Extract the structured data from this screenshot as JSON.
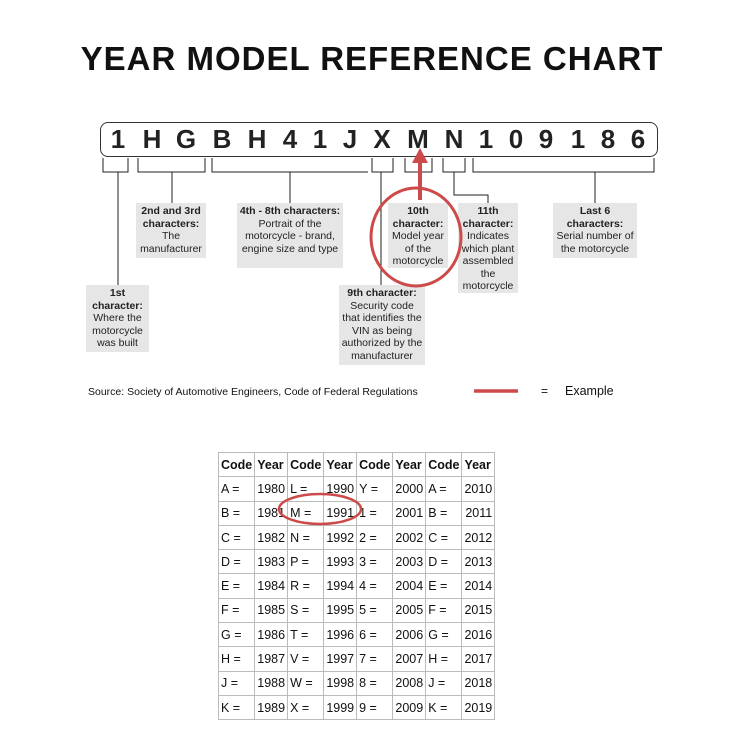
{
  "title": "YEAR MODEL REFERENCE CHART",
  "vin": [
    "1",
    "H",
    "G",
    "B",
    "H",
    "4",
    "1",
    "J",
    "X",
    "M",
    "N",
    "1",
    "0",
    "9",
    "1",
    "8",
    "6"
  ],
  "labels": {
    "c1": {
      "head": "1st character:",
      "body": "Where the motorcycle was built"
    },
    "c23": {
      "head": "2nd and 3rd characters:",
      "body": "The manufacturer"
    },
    "c48": {
      "head": "4th - 8th characters:",
      "body": "Portrait of the motorcycle - brand, engine size and type"
    },
    "c9": {
      "head": "9th character:",
      "body": "Security code that identifies the VIN as being authorized by the manufacturer"
    },
    "c10": {
      "head": "10th character:",
      "body": "Model year of the motorcycle"
    },
    "c11": {
      "head": "11th character:",
      "body": "Indicates which plant assembled the motorcycle"
    },
    "last6": {
      "head": "Last 6 characters:",
      "body": "Serial number of the motorcycle"
    }
  },
  "source": "Source:  Society of Automotive Engineers, Code of Federal Regulations",
  "legend": {
    "equals": "=",
    "label": "Example",
    "color": "#d0474a"
  },
  "table": {
    "headers": [
      "Code",
      "Year",
      "Code",
      "Year",
      "Code",
      "Year",
      "Code",
      "Year"
    ],
    "rows": [
      [
        "A =",
        "1980",
        "L =",
        "1990",
        "Y =",
        "2000",
        "A =",
        "2010"
      ],
      [
        "B =",
        "1981",
        "M =",
        "1991",
        "1 =",
        "2001",
        "B =",
        "2011"
      ],
      [
        "C =",
        "1982",
        "N =",
        "1992",
        "2 =",
        "2002",
        "C =",
        "2012"
      ],
      [
        "D =",
        "1983",
        "P =",
        "1993",
        "3 =",
        "2003",
        "D =",
        "2013"
      ],
      [
        "E =",
        "1984",
        "R =",
        "1994",
        "4 =",
        "2004",
        "E =",
        "2014"
      ],
      [
        "F =",
        "1985",
        "S =",
        "1995",
        "5 =",
        "2005",
        "F =",
        "2015"
      ],
      [
        "G =",
        "1986",
        "T =",
        "1996",
        "6 =",
        "2006",
        "G =",
        "2016"
      ],
      [
        "H =",
        "1987",
        "V =",
        "1997",
        "7 =",
        "2007",
        "H =",
        "2017"
      ],
      [
        "J =",
        "1988",
        "W =",
        "1998",
        "8 =",
        "2008",
        "J =",
        "2018"
      ],
      [
        "K =",
        "1989",
        "X =",
        "1999",
        "9 =",
        "2009",
        "K =",
        "2019"
      ]
    ]
  }
}
